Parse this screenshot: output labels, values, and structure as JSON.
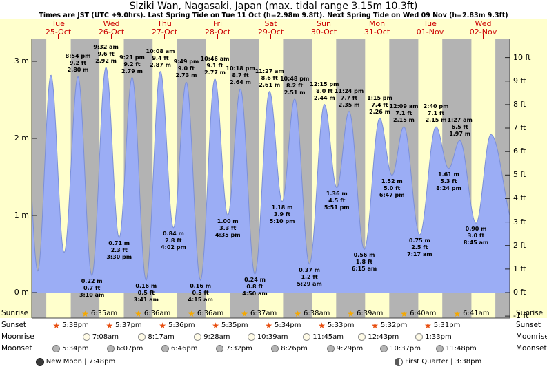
{
  "title": "Siziki Wan, Nagasaki, Japan (max. tidal range 3.15m 10.3ft)",
  "subtitle": "Times are JST (UTC +9.0hrs). Last Spring Tide on Tue 11 Oct (h=2.98m 9.8ft). Next Spring Tide on Wed 09 Nov (h=2.83m 9.3ft)",
  "colors": {
    "day_band": "#ffffcc",
    "night_band": "#b3b3b3",
    "tide_fill": "#9badf5",
    "tide_stroke": "#7b8fd8",
    "date_color": "#cc0000",
    "axis_color": "#000000",
    "sunrise_star": "#f5a800",
    "sunset_star": "#e84d0e",
    "moonrise_fill": "#fffbe6",
    "moonrise_border": "#8a8a8a",
    "moonset_fill": "#b5b5b5",
    "moonset_border": "#777777"
  },
  "chart_data": {
    "type": "area",
    "title": "Siziki Wan, Nagasaki, Japan (max. tidal range 3.15m 10.3ft)",
    "ylabel_left": "m",
    "ylabel_right": "ft",
    "hours_span": 216,
    "ylim_m": [
      -0.33,
      3.28
    ],
    "x_days": [
      {
        "name": "Tue",
        "date": "25-Oct"
      },
      {
        "name": "Wed",
        "date": "26-Oct"
      },
      {
        "name": "Thu",
        "date": "27-Oct"
      },
      {
        "name": "Fri",
        "date": "28-Oct"
      },
      {
        "name": "Sat",
        "date": "29-Oct"
      },
      {
        "name": "Sun",
        "date": "30-Oct"
      },
      {
        "name": "Mon",
        "date": "31-Oct"
      },
      {
        "name": "Tue",
        "date": "01-Nov"
      },
      {
        "name": "Wed",
        "date": "02-Nov"
      }
    ],
    "y_left_ticks": [
      {
        "v": 3,
        "label": "3 m"
      },
      {
        "v": 2,
        "label": "2 m"
      },
      {
        "v": 1,
        "label": "1 m"
      },
      {
        "v": 0,
        "label": "0 m"
      }
    ],
    "y_right_ticks": [
      {
        "v": 10,
        "label": "10 ft"
      },
      {
        "v": 9,
        "label": "9 ft"
      },
      {
        "v": 8,
        "label": "8 ft"
      },
      {
        "v": 7,
        "label": "7 ft"
      },
      {
        "v": 6,
        "label": "6 ft"
      },
      {
        "v": 5,
        "label": "5 ft"
      },
      {
        "v": 4,
        "label": "4 ft"
      },
      {
        "v": 3,
        "label": "3 ft"
      },
      {
        "v": 2,
        "label": "2 ft"
      },
      {
        "v": 1,
        "label": "1 ft"
      },
      {
        "v": 0,
        "label": "0 ft"
      },
      {
        "v": -1,
        "label": "-1 ft"
      }
    ],
    "night_bands": [
      [
        0,
        6.57
      ],
      [
        17.633,
        30.583
      ],
      [
        41.617,
        54.6
      ],
      [
        65.6,
        78.6
      ],
      [
        89.583,
        102.617
      ],
      [
        113.567,
        126.633
      ],
      [
        137.55,
        150.65
      ],
      [
        161.533,
        174.667
      ],
      [
        185.517,
        198.683
      ],
      [
        209.5,
        216
      ]
    ],
    "extremes": [
      {
        "t": -3.5,
        "h": 2.75,
        "kind": "high",
        "lines": null
      },
      {
        "t": 2.75,
        "h": 0.28,
        "kind": "low",
        "lines": null
      },
      {
        "t": 8.667,
        "h": 2.82,
        "kind": "high",
        "lines": null
      },
      {
        "t": 14.667,
        "h": 0.52,
        "kind": "low",
        "lines": null
      },
      {
        "t": 20.9,
        "h": 2.8,
        "kind": "high",
        "lines": [
          "8:54 pm",
          "9.2 ft",
          "2.80 m"
        ]
      },
      {
        "t": 27.167,
        "h": 0.22,
        "kind": "low",
        "lines": [
          "0.22 m",
          "0.7 ft",
          "3:10 am"
        ]
      },
      {
        "t": 33.533,
        "h": 2.92,
        "kind": "high",
        "lines": [
          "9:32 am",
          "9.6 ft",
          "2.92 m"
        ]
      },
      {
        "t": 39.5,
        "h": 0.71,
        "kind": "low",
        "lines": [
          "0.71 m",
          "2.3 ft",
          "3:30 pm"
        ]
      },
      {
        "t": 45.35,
        "h": 2.79,
        "kind": "high",
        "lines": [
          "9:21 pm",
          "9.2 ft",
          "2.79 m"
        ]
      },
      {
        "t": 51.683,
        "h": 0.16,
        "kind": "low",
        "lines": [
          "0.16 m",
          "0.5 ft",
          "3:41 am"
        ]
      },
      {
        "t": 58.133,
        "h": 2.87,
        "kind": "high",
        "lines": [
          "10:08 am",
          "9.4 ft",
          "2.87 m"
        ]
      },
      {
        "t": 64.033,
        "h": 0.84,
        "kind": "low",
        "lines": [
          "0.84 m",
          "2.8 ft",
          "4:02 pm"
        ]
      },
      {
        "t": 69.817,
        "h": 2.73,
        "kind": "high",
        "lines": [
          "9:49 pm",
          "9.0 ft",
          "2.73 m"
        ]
      },
      {
        "t": 76.25,
        "h": 0.16,
        "kind": "low",
        "lines": [
          "0.16 m",
          "0.5 ft",
          "4:15 am"
        ]
      },
      {
        "t": 82.767,
        "h": 2.77,
        "kind": "high",
        "lines": [
          "10:46 am",
          "9.1 ft",
          "2.77 m"
        ]
      },
      {
        "t": 88.583,
        "h": 1.0,
        "kind": "low",
        "lines": [
          "1.00 m",
          "3.3 ft",
          "4:35 pm"
        ]
      },
      {
        "t": 94.3,
        "h": 2.64,
        "kind": "high",
        "lines": [
          "10:18 pm",
          "8.7 ft",
          "2.64 m"
        ]
      },
      {
        "t": 100.833,
        "h": 0.24,
        "kind": "low",
        "lines": [
          "0.24 m",
          "0.8 ft",
          "4:50 am"
        ]
      },
      {
        "t": 107.45,
        "h": 2.61,
        "kind": "high",
        "lines": [
          "11:27 am",
          "8.6 ft",
          "2.61 m"
        ]
      },
      {
        "t": 113.167,
        "h": 1.18,
        "kind": "low",
        "lines": [
          "1.18 m",
          "3.9 ft",
          "5:10 pm"
        ]
      },
      {
        "t": 118.8,
        "h": 2.51,
        "kind": "high",
        "lines": [
          "10:48 pm",
          "8.2 ft",
          "2.51 m"
        ]
      },
      {
        "t": 125.483,
        "h": 0.37,
        "kind": "low",
        "lines": [
          "0.37 m",
          "1.2 ft",
          "5:29 am"
        ]
      },
      {
        "t": 132.25,
        "h": 2.44,
        "kind": "high",
        "lines": [
          "12:15 pm",
          "8.0 ft",
          "2.44 m"
        ]
      },
      {
        "t": 137.85,
        "h": 1.36,
        "kind": "low",
        "lines": [
          "1.36 m",
          "4.5 ft",
          "5:51 pm"
        ]
      },
      {
        "t": 143.4,
        "h": 2.35,
        "kind": "high",
        "lines": [
          "11:24 pm",
          "7.7 ft",
          "2.35 m"
        ]
      },
      {
        "t": 150.25,
        "h": 0.56,
        "kind": "low",
        "lines": [
          "0.56 m",
          "1.8 ft",
          "6:15 am"
        ]
      },
      {
        "t": 157.25,
        "h": 2.26,
        "kind": "high",
        "lines": [
          "1:15 pm",
          "7.4 ft",
          "2.26 m"
        ]
      },
      {
        "t": 162.783,
        "h": 1.52,
        "kind": "low",
        "lines": [
          "1.52 m",
          "5.0 ft",
          "6:47 pm"
        ]
      },
      {
        "t": 168.15,
        "h": 2.15,
        "kind": "high",
        "lines": [
          "12:09 am",
          "7.1 ft",
          "2.15 m"
        ]
      },
      {
        "t": 175.283,
        "h": 0.75,
        "kind": "low",
        "lines": [
          "0.75 m",
          "2.5 ft",
          "7:17 am"
        ]
      },
      {
        "t": 182.667,
        "h": 2.15,
        "kind": "high",
        "lines": [
          "2:40 pm",
          "7.1 ft",
          "2.15 m"
        ]
      },
      {
        "t": 188.4,
        "h": 1.61,
        "kind": "low",
        "lines": [
          "1.61 m",
          "5.3 ft",
          "8:24 pm"
        ]
      },
      {
        "t": 193.45,
        "h": 1.97,
        "kind": "high",
        "lines": [
          "1:27 am",
          "6.5 ft",
          "1.97 m"
        ]
      },
      {
        "t": 200.75,
        "h": 0.9,
        "kind": "low",
        "lines": [
          "0.90 m",
          "3.0 ft",
          "8:45 am"
        ]
      },
      {
        "t": 207.5,
        "h": 2.05,
        "kind": "high",
        "lines": null
      },
      {
        "t": 218.5,
        "h": 0.85,
        "kind": "low",
        "lines": null
      }
    ]
  },
  "events": {
    "rows": [
      {
        "id": "sunrise",
        "label": "Sunrise",
        "icon_kind": "star",
        "entries": [
          {
            "t": 30.583,
            "time": "6:35am"
          },
          {
            "t": 54.6,
            "time": "6:36am"
          },
          {
            "t": 78.6,
            "time": "6:36am"
          },
          {
            "t": 102.617,
            "time": "6:37am"
          },
          {
            "t": 126.633,
            "time": "6:38am"
          },
          {
            "t": 150.65,
            "time": "6:39am"
          },
          {
            "t": 174.667,
            "time": "6:40am"
          },
          {
            "t": 198.683,
            "time": "6:41am"
          }
        ]
      },
      {
        "id": "sunset",
        "label": "Sunset",
        "icon_kind": "star",
        "entries": [
          {
            "t": 17.633,
            "time": "5:38pm"
          },
          {
            "t": 41.617,
            "time": "5:37pm"
          },
          {
            "t": 65.6,
            "time": "5:36pm"
          },
          {
            "t": 89.583,
            "time": "5:35pm"
          },
          {
            "t": 113.567,
            "time": "5:34pm"
          },
          {
            "t": 137.55,
            "time": "5:33pm"
          },
          {
            "t": 161.533,
            "time": "5:32pm"
          },
          {
            "t": 185.517,
            "time": "5:31pm"
          }
        ]
      },
      {
        "id": "moonrise",
        "label": "Moonrise",
        "icon_kind": "circle",
        "entries": [
          {
            "t": 31.133,
            "time": "7:08am"
          },
          {
            "t": 56.283,
            "time": "8:17am"
          },
          {
            "t": 81.467,
            "time": "9:28am"
          },
          {
            "t": 106.65,
            "time": "10:39am"
          },
          {
            "t": 131.75,
            "time": "11:45am"
          },
          {
            "t": 156.717,
            "time": "12:43pm"
          },
          {
            "t": 181.55,
            "time": "1:33pm"
          }
        ]
      },
      {
        "id": "moonset",
        "label": "Moonset",
        "icon_kind": "circle",
        "entries": [
          {
            "t": 17.567,
            "time": "5:34pm"
          },
          {
            "t": 42.117,
            "time": "6:07pm"
          },
          {
            "t": 66.767,
            "time": "6:46pm"
          },
          {
            "t": 91.533,
            "time": "7:32pm"
          },
          {
            "t": 116.433,
            "time": "8:26pm"
          },
          {
            "t": 141.483,
            "time": "9:29pm"
          },
          {
            "t": 166.617,
            "time": "10:37pm"
          },
          {
            "t": 191.8,
            "time": "11:48pm"
          }
        ]
      }
    ],
    "phases": [
      {
        "t": 19.8,
        "name": "New Moon",
        "time": "7:48pm",
        "separator": "|"
      },
      {
        "t": 183.633,
        "name": "First Quarter",
        "time": "3:38pm",
        "separator": "|"
      }
    ]
  }
}
